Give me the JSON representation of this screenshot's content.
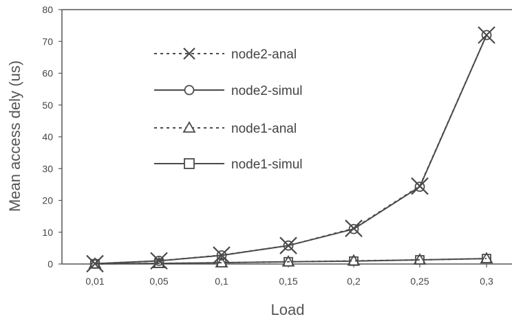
{
  "chart_data": {
    "type": "line",
    "xlabel": "Load",
    "ylabel": "Mean access dely (us)",
    "categories": [
      "0,01",
      "0,05",
      "0,1",
      "0,15",
      "0,2",
      "0,25",
      "0,3"
    ],
    "ylim": [
      0,
      80
    ],
    "yticks": [
      "0",
      "10",
      "20",
      "30",
      "40",
      "50",
      "60",
      "70",
      "80"
    ],
    "legend_position": "upper-left",
    "grid": false,
    "series": [
      {
        "name": "node2-anal",
        "marker": "x",
        "dash": "dashed",
        "values": [
          0.1,
          1.0,
          2.8,
          5.8,
          11.2,
          24.5,
          72.0
        ]
      },
      {
        "name": "node2-simul",
        "marker": "circle",
        "dash": "solid",
        "values": [
          0.1,
          1.0,
          2.7,
          5.8,
          11.0,
          24.3,
          72.0
        ]
      },
      {
        "name": "node1-anal",
        "marker": "triangle",
        "dash": "dashed",
        "values": [
          0.05,
          0.2,
          0.4,
          0.7,
          1.0,
          1.3,
          1.7
        ]
      },
      {
        "name": "node1-simul",
        "marker": "square",
        "dash": "solid",
        "values": [
          0.05,
          0.2,
          0.4,
          0.7,
          0.9,
          1.3,
          1.7
        ]
      }
    ],
    "line_color": "#4a4a4a",
    "axis_color": "#555555"
  }
}
